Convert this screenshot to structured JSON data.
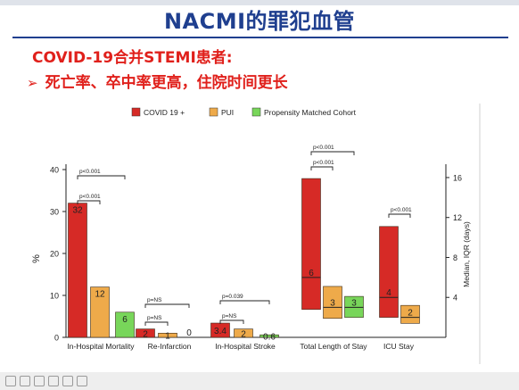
{
  "slide": {
    "title": "NACMI的罪犯血管",
    "subtitle": "COVID-19合并STEMI患者:",
    "bullet": "死亡率、卒中率更高，住院时间更长",
    "bullet_marker": "➢"
  },
  "colors": {
    "title": "#1f3f8f",
    "subtitle": "#e0201b",
    "covid": "#d62a26",
    "pui": "#eeaa4a",
    "pmc": "#78d65a"
  },
  "chart_data": {
    "type": "bar",
    "categories": [
      "In-Hospital Mortality",
      "Re-Infarction",
      "In-Hospital Stroke",
      "Total Length of Stay",
      "ICU Stay"
    ],
    "legend": [
      "COVID 19 +",
      "PUI",
      "Propensity Matched Cohort"
    ],
    "legend_position": "top",
    "ylabel": "%",
    "ylim": [
      0,
      40
    ],
    "yticks": [
      0,
      10,
      20,
      30,
      40
    ],
    "ylabel_right": "Median, IQR (days)",
    "ylim_right": [
      0,
      16.8
    ],
    "yticks_right": [
      4,
      8,
      12,
      16
    ],
    "percent_series": [
      {
        "category": "In-Hospital Mortality",
        "values": [
          32,
          12,
          6
        ],
        "labels": [
          "32",
          "12",
          "6"
        ]
      },
      {
        "category": "Re-Infarction",
        "values": [
          2,
          1,
          0
        ],
        "labels": [
          "2",
          "1",
          "0"
        ]
      },
      {
        "category": "In-Hospital Stroke",
        "values": [
          3.4,
          2,
          0.6
        ],
        "labels": [
          "3.4",
          "2",
          "0.6"
        ]
      }
    ],
    "days_series": [
      {
        "category": "Total Length of Stay",
        "medians": [
          6,
          3,
          3
        ],
        "q1": [
          2.8,
          1.9,
          2.0
        ],
        "q3": [
          15.9,
          5.1,
          4.1
        ],
        "labels": [
          "6",
          "3",
          "3"
        ]
      },
      {
        "category": "ICU Stay",
        "medians": [
          4,
          2
        ],
        "q1": [
          2.0,
          1.4
        ],
        "q3": [
          11.1,
          3.2
        ],
        "labels": [
          "4",
          "2"
        ]
      }
    ],
    "annotations": [
      {
        "text": "p<0.001",
        "category": "In-Hospital Mortality",
        "from": 0,
        "to": 2
      },
      {
        "text": "p<0.001",
        "category": "In-Hospital Mortality",
        "from": 0,
        "to": 1
      },
      {
        "text": "p=NS",
        "category": "Re-Infarction",
        "from": 0,
        "to": 2
      },
      {
        "text": "p=NS",
        "category": "Re-Infarction",
        "from": 0,
        "to": 1
      },
      {
        "text": "p=0.039",
        "category": "In-Hospital Stroke",
        "from": 0,
        "to": 2
      },
      {
        "text": "p=NS",
        "category": "In-Hospital Stroke",
        "from": 0,
        "to": 1
      },
      {
        "text": "p<0.001",
        "category": "Total Length of Stay",
        "from": 0,
        "to": 2
      },
      {
        "text": "p<0.001",
        "category": "Total Length of Stay",
        "from": 0,
        "to": 1
      },
      {
        "text": "p<0.001",
        "category": "ICU Stay",
        "from": 0,
        "to": 1
      }
    ]
  }
}
